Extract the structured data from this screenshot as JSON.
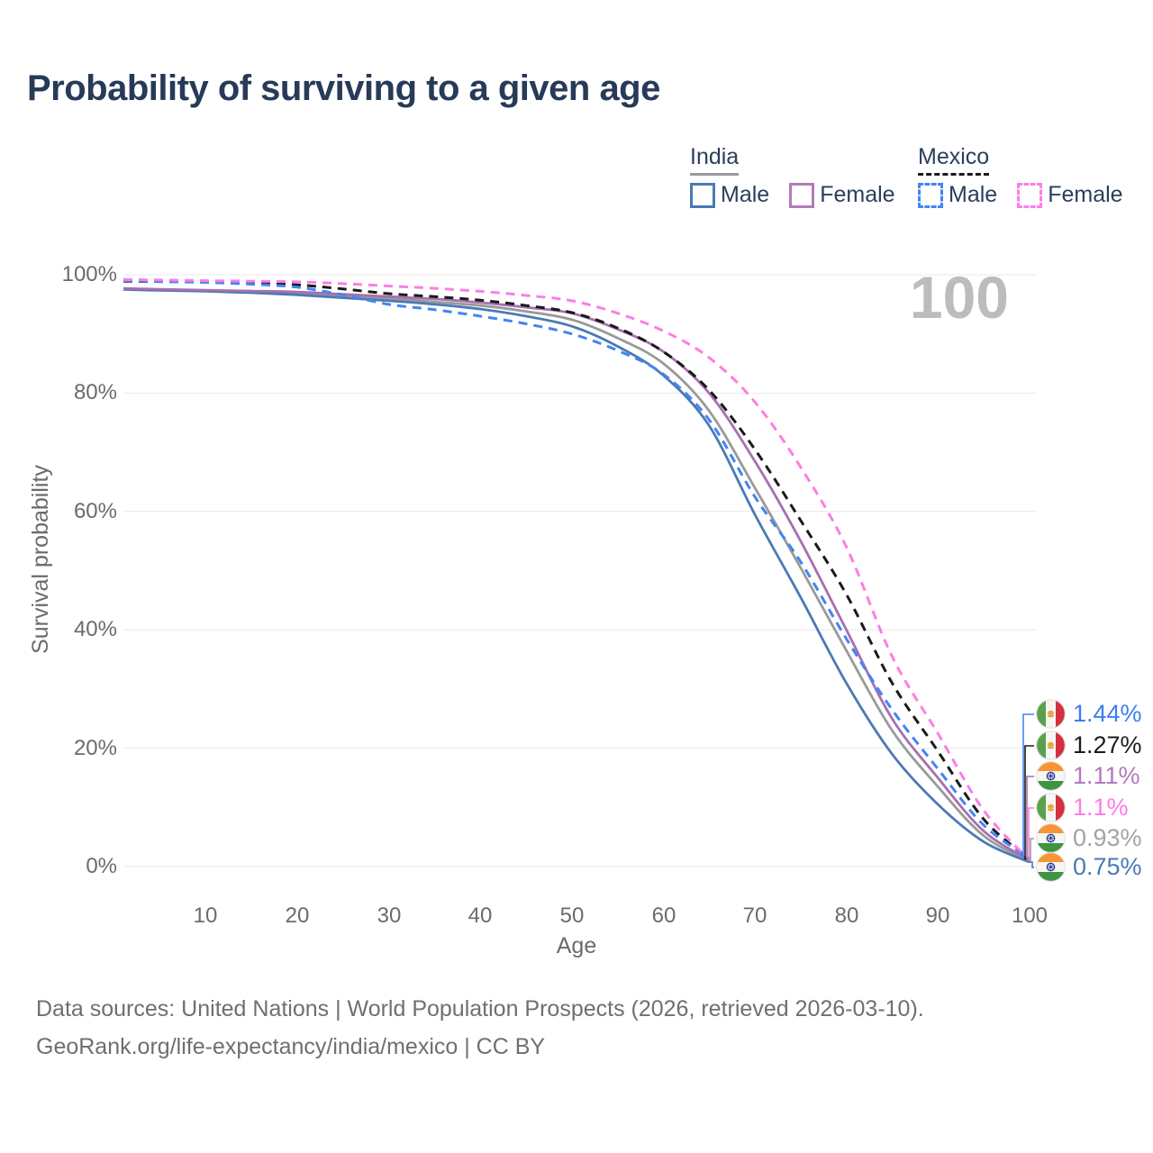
{
  "title": "Probability of surviving to a given age",
  "watermark": "100",
  "legend": {
    "groups": [
      {
        "label": "India",
        "line_style": "solid",
        "line_color": "#9b9b9b",
        "items": [
          {
            "label": "Male",
            "color": "#4a7ab5",
            "style": "solid"
          },
          {
            "label": "Female",
            "color": "#b27cb5",
            "style": "solid"
          }
        ]
      },
      {
        "label": "Mexico",
        "line_style": "dashed",
        "line_color": "#1a1a1a",
        "items": [
          {
            "label": "Male",
            "color": "#4285f4",
            "style": "dashed"
          },
          {
            "label": "Female",
            "color": "#fb7ee4",
            "style": "dashed"
          }
        ]
      }
    ]
  },
  "axes": {
    "x": {
      "label": "Age",
      "ticks": [
        "10",
        "20",
        "30",
        "40",
        "50",
        "60",
        "70",
        "80",
        "90",
        "100"
      ]
    },
    "y": {
      "label": "Survival probability",
      "ticks": [
        "0%",
        "20%",
        "40%",
        "60%",
        "80%",
        "100%"
      ]
    }
  },
  "end_labels": [
    {
      "series": "Mexico Male",
      "value": "1.44%",
      "color": "#3e7df2",
      "country": "mexico"
    },
    {
      "series": "Mexico",
      "value": "1.27%",
      "color": "#1d1d1d",
      "country": "mexico"
    },
    {
      "series": "India Female",
      "value": "1.11%",
      "color": "#b279be",
      "country": "india"
    },
    {
      "series": "Mexico Female",
      "value": "1.1%",
      "color": "#fd7ce5",
      "country": "mexico"
    },
    {
      "series": "India",
      "value": "0.93%",
      "color": "#a3a3a3",
      "country": "india"
    },
    {
      "series": "India Male",
      "value": "0.75%",
      "color": "#4a7ab5",
      "country": "india"
    }
  ],
  "footer": {
    "line1": "Data sources: United Nations | World Population Prospects (2026, retrieved 2026-03-10).",
    "line2": "GeoRank.org/life-expectancy/india/mexico | CC BY"
  },
  "chart_data": {
    "type": "line",
    "title": "Probability of surviving to a given age",
    "xlabel": "Age",
    "ylabel": "Survival probability",
    "xlim": [
      1,
      100
    ],
    "ylim": [
      0,
      100
    ],
    "unit": "%",
    "grid": "horizontal",
    "hover_age": 100,
    "x": [
      1,
      5,
      10,
      15,
      20,
      25,
      30,
      35,
      40,
      45,
      50,
      55,
      60,
      65,
      70,
      75,
      80,
      85,
      90,
      95,
      100
    ],
    "series": [
      {
        "name": "India",
        "country": "india",
        "sex": "both",
        "style": "solid",
        "color": "#9a9a9a",
        "values": [
          97.6,
          97.45,
          97.3,
          97.1,
          96.9,
          96.45,
          96.0,
          95.4,
          94.8,
          93.8,
          92.4,
          89.3,
          85.0,
          77.0,
          64.0,
          50.5,
          36.5,
          23.0,
          13.5,
          5.2,
          0.93
        ]
      },
      {
        "name": "India Male",
        "country": "india",
        "sex": "male",
        "style": "solid",
        "color": "#4a7ab5",
        "values": [
          97.5,
          97.35,
          97.2,
          96.95,
          96.6,
          96.1,
          95.6,
          95.0,
          94.2,
          93.0,
          91.3,
          87.9,
          83.0,
          74.5,
          59.5,
          45.5,
          31.0,
          19.0,
          10.5,
          4.2,
          0.75
        ]
      },
      {
        "name": "India Female",
        "country": "india",
        "sex": "female",
        "style": "solid",
        "color": "#a76fb0",
        "values": [
          97.7,
          97.55,
          97.4,
          97.25,
          97.1,
          96.7,
          96.3,
          95.9,
          95.3,
          94.5,
          93.5,
          90.8,
          87.0,
          80.0,
          68.5,
          55.0,
          40.0,
          25.0,
          15.0,
          6.0,
          1.11
        ]
      },
      {
        "name": "Mexico",
        "country": "mexico",
        "sex": "both",
        "style": "dashed",
        "color": "#1a1a1a",
        "values": [
          98.9,
          98.85,
          98.8,
          98.6,
          98.3,
          97.6,
          96.8,
          96.3,
          95.7,
          94.8,
          93.6,
          91.0,
          87.0,
          80.5,
          70.5,
          58.5,
          46.0,
          31.0,
          19.5,
          8.0,
          1.27
        ]
      },
      {
        "name": "Mexico Male",
        "country": "mexico",
        "sex": "male",
        "style": "dashed",
        "color": "#4285f4",
        "values": [
          99.0,
          98.85,
          98.7,
          98.4,
          97.9,
          96.6,
          95.0,
          94.1,
          93.0,
          91.7,
          90.0,
          87.2,
          83.2,
          75.5,
          62.5,
          51.5,
          38.5,
          26.5,
          16.5,
          7.0,
          1.44
        ]
      },
      {
        "name": "Mexico Female",
        "country": "mexico",
        "sex": "female",
        "style": "dashed",
        "color": "#fb7ee4",
        "values": [
          99.2,
          99.1,
          99.0,
          98.9,
          98.8,
          98.5,
          98.1,
          97.7,
          97.2,
          96.5,
          95.6,
          93.5,
          90.5,
          86.0,
          78.5,
          67.5,
          54.0,
          35.5,
          22.5,
          9.5,
          1.1
        ]
      }
    ]
  }
}
